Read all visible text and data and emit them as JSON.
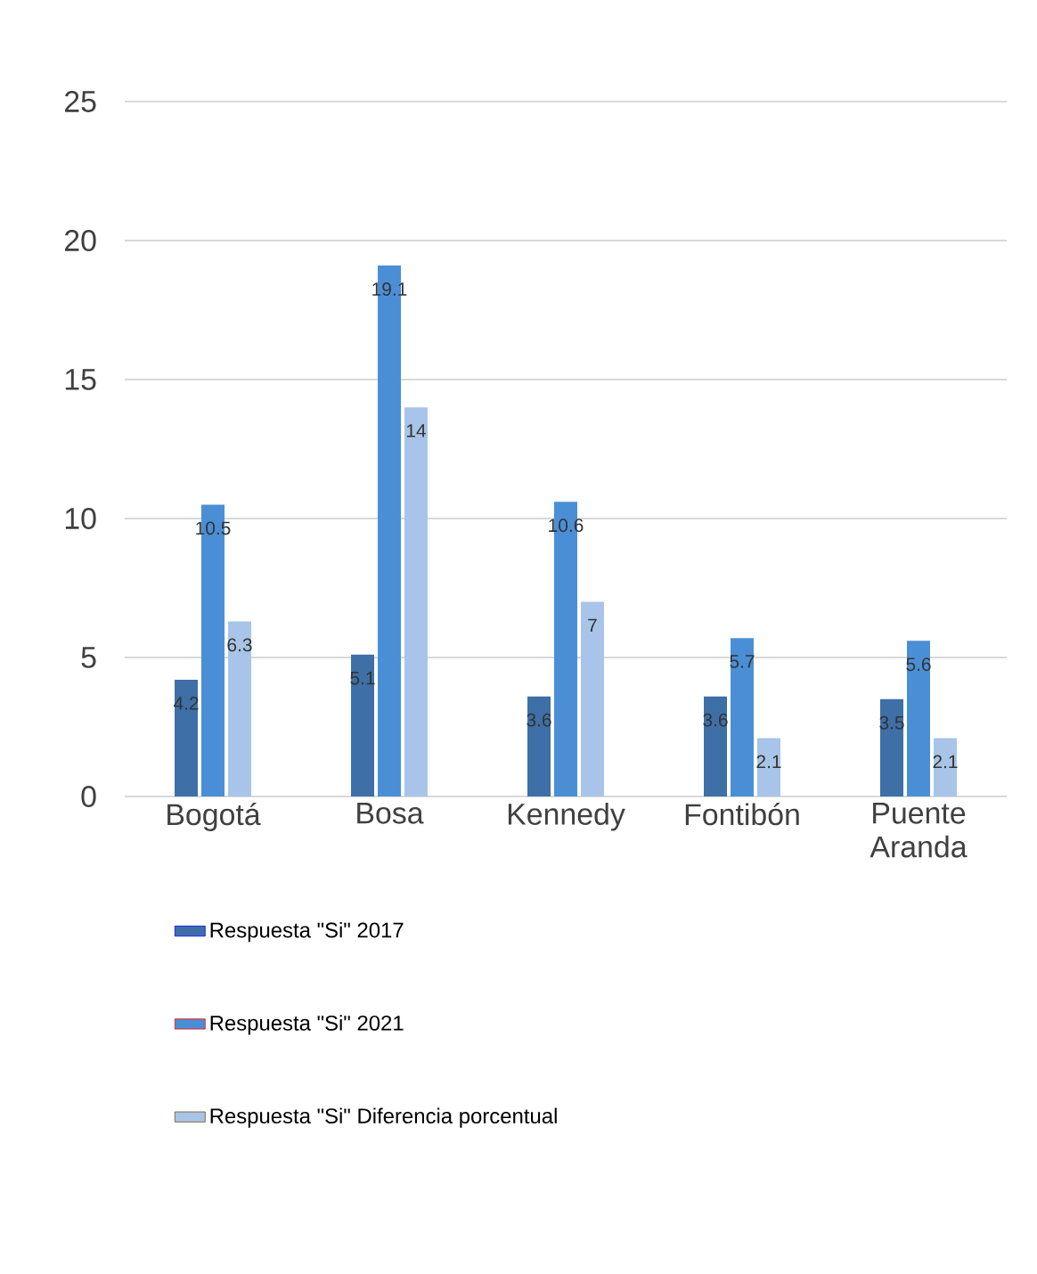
{
  "chart_data": {
    "type": "bar",
    "categories": [
      "Bogotá",
      "Bosa",
      "Kennedy",
      "Fontibón",
      "Puente Aranda"
    ],
    "series": [
      {
        "name": "Respuesta \"Si\" 2017",
        "color": "#3e6fa6",
        "values": [
          4.2,
          5.1,
          3.6,
          3.6,
          3.5
        ]
      },
      {
        "name": "Respuesta \"Si\" 2021",
        "color": "#4a8fd6",
        "values": [
          10.5,
          19.1,
          10.6,
          5.7,
          5.6
        ]
      },
      {
        "name": "Respuesta \"Si\" Diferencia porcentual",
        "color": "#a8c4e8",
        "values": [
          6.3,
          14,
          7,
          2.1,
          2.1
        ]
      }
    ],
    "ylim": [
      0,
      25
    ],
    "yticks": [
      0,
      5,
      10,
      15,
      20,
      25
    ],
    "grid": "y",
    "legend": "bottom",
    "data_labels": true
  }
}
